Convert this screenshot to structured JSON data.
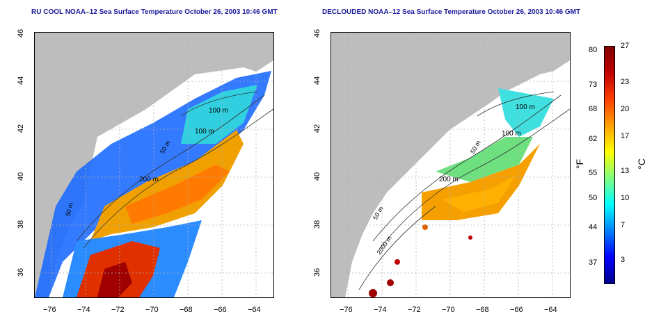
{
  "panels": [
    {
      "title": "RU COOL NOAA–12 Sea Surface Temperature October 26, 2003 10:46 GMT",
      "contour_labels": [
        "100 m",
        "100 m",
        "50 m",
        "200 m",
        "50 m"
      ]
    },
    {
      "title": "DECLOUDED NOAA–12 Sea Surface Temperature October 26, 2003 10:46 GMT",
      "contour_labels": [
        "100 m",
        "100 m",
        "50 m",
        "200 m",
        "50 m",
        "2000 m"
      ]
    }
  ],
  "axes": {
    "x_ticks": [
      "−76",
      "−74",
      "−72",
      "−70",
      "−68",
      "−66",
      "−64"
    ],
    "y_ticks": [
      "46",
      "44",
      "42",
      "40",
      "38",
      "36"
    ]
  },
  "colorbar": {
    "fahrenheit_unit": "°F",
    "celsius_unit": "°C",
    "fahrenheit_ticks": [
      "80",
      "73",
      "68",
      "62",
      "55",
      "50",
      "44",
      "37"
    ],
    "celsius_ticks": [
      "27",
      "23",
      "20",
      "17",
      "13",
      "10",
      "7",
      "3"
    ],
    "colors": [
      "#00008b",
      "#0000ff",
      "#0080ff",
      "#00ffff",
      "#80ff80",
      "#ffff00",
      "#ffa000",
      "#ff4000",
      "#c00000",
      "#800000"
    ]
  },
  "colors": {
    "land": "#bdbdbd",
    "cloud_mask": "#ffffff",
    "title": "#1a1a9a"
  }
}
